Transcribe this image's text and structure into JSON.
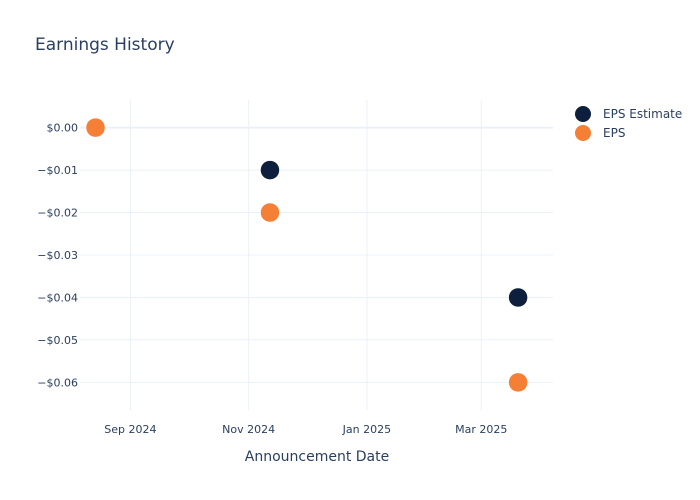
{
  "chart_data": {
    "type": "scatter",
    "title": "Earnings History",
    "xlabel": "Announcement Date",
    "ylabel": "",
    "x_ticks": [
      {
        "date": "2024-09-01",
        "label": "Sep 2024"
      },
      {
        "date": "2024-11-01",
        "label": "Nov 2024"
      },
      {
        "date": "2025-01-01",
        "label": "Jan 2025"
      },
      {
        "date": "2025-03-01",
        "label": "Mar 2025"
      }
    ],
    "xlim": [
      "2024-08-06",
      "2025-04-07"
    ],
    "y_ticks": [
      {
        "value": 0.0,
        "label": "$0.00"
      },
      {
        "value": -0.01,
        "label": "−$0.01"
      },
      {
        "value": -0.02,
        "label": "−$0.02"
      },
      {
        "value": -0.03,
        "label": "−$0.03"
      },
      {
        "value": -0.04,
        "label": "−$0.04"
      },
      {
        "value": -0.05,
        "label": "−$0.05"
      },
      {
        "value": -0.06,
        "label": "−$0.06"
      }
    ],
    "ylim": [
      -0.0665,
      0.0065
    ],
    "grid": true,
    "legend_position": "top-right",
    "series": [
      {
        "name": "EPS Estimate",
        "color": "#0d1f3c",
        "points": [
          {
            "x": "2024-08-14",
            "y": 0.0
          },
          {
            "x": "2024-11-12",
            "y": -0.01
          },
          {
            "x": "2025-03-20",
            "y": -0.04
          }
        ]
      },
      {
        "name": "EPS",
        "color": "#f57f35",
        "points": [
          {
            "x": "2024-08-14",
            "y": 0.0
          },
          {
            "x": "2024-11-12",
            "y": -0.02
          },
          {
            "x": "2025-03-20",
            "y": -0.06
          }
        ]
      }
    ]
  }
}
